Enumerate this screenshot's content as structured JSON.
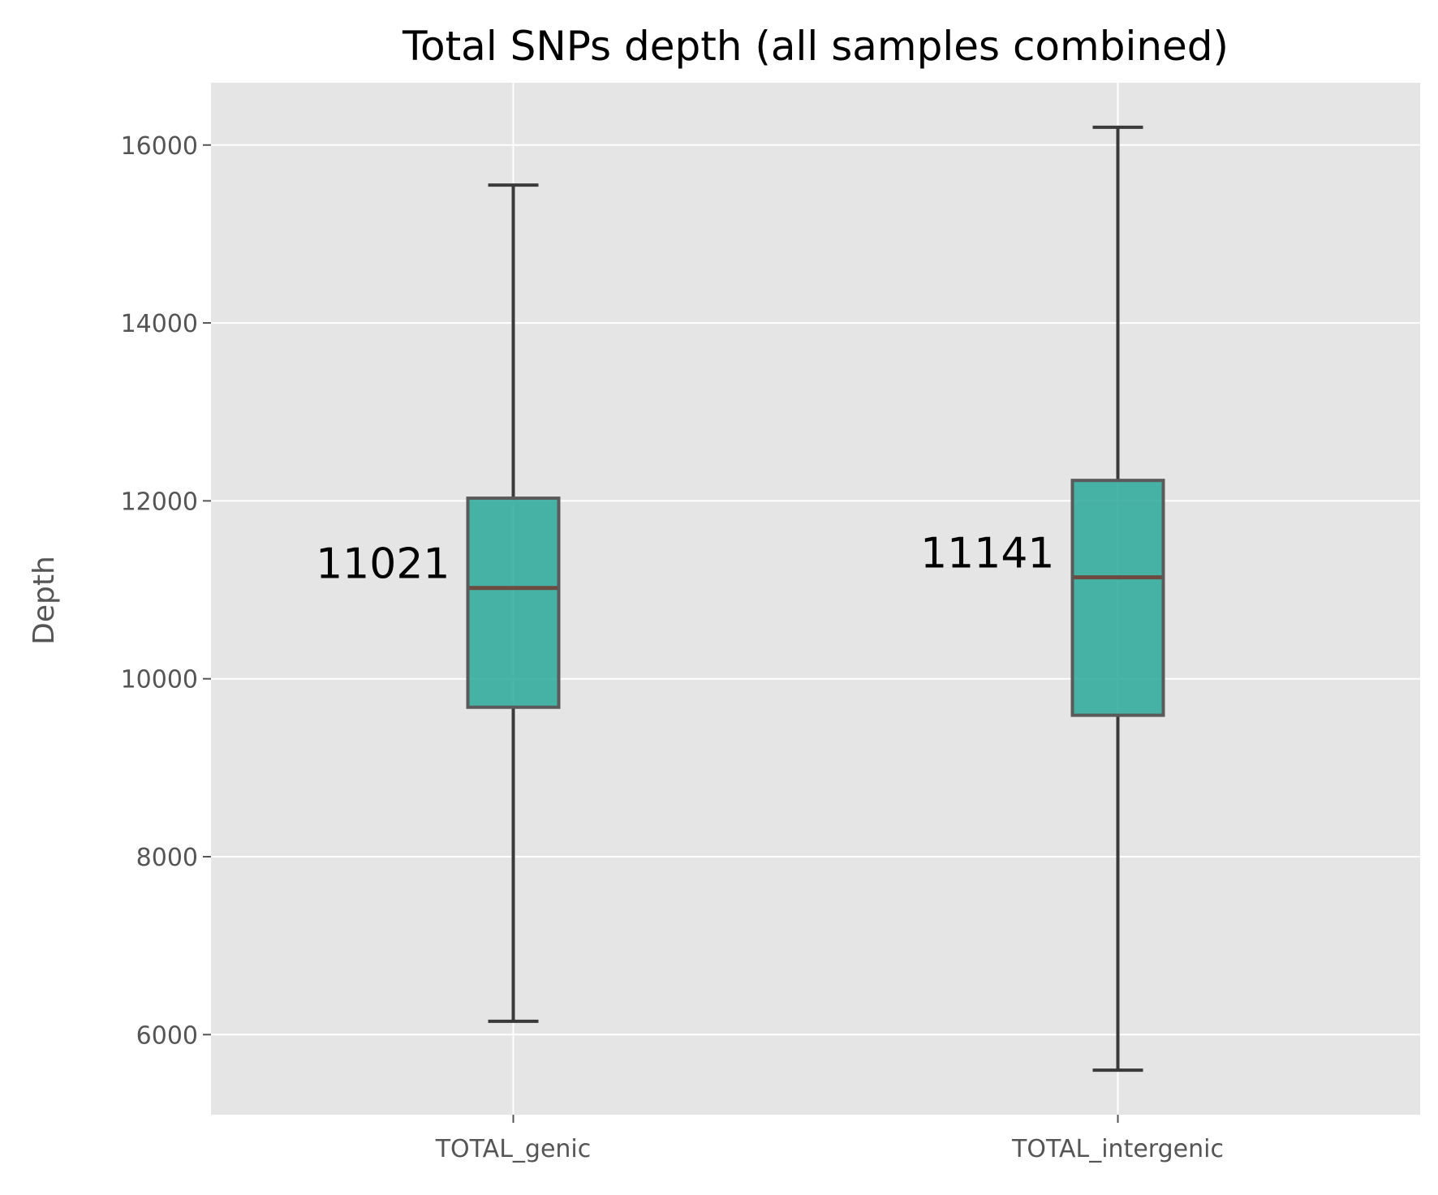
{
  "chart_data": {
    "type": "box",
    "title": "Total SNPs depth (all samples combined)",
    "xlabel": "",
    "ylabel": "Depth",
    "ylim": [
      5100,
      16700
    ],
    "yticks": [
      6000,
      8000,
      10000,
      12000,
      14000,
      16000
    ],
    "categories": [
      "TOTAL_genic",
      "TOTAL_intergenic"
    ],
    "boxes": [
      {
        "category": "TOTAL_genic",
        "whisker_low": 6150,
        "q1": 9680,
        "median": 11021,
        "q3": 12030,
        "whisker_high": 15550,
        "median_label": "11021"
      },
      {
        "category": "TOTAL_intergenic",
        "whisker_low": 5600,
        "q1": 9590,
        "median": 11141,
        "q3": 12230,
        "whisker_high": 16200,
        "median_label": "11141"
      }
    ],
    "grid": true,
    "legend": "none",
    "colors": {
      "plot_background": "#e5e5e5",
      "grid": "#ffffff",
      "box_fill": "#2aa89a",
      "box_edge": "#5a5a5a",
      "whisker": "#3a3a3a",
      "median": "#6e4b40"
    }
  }
}
